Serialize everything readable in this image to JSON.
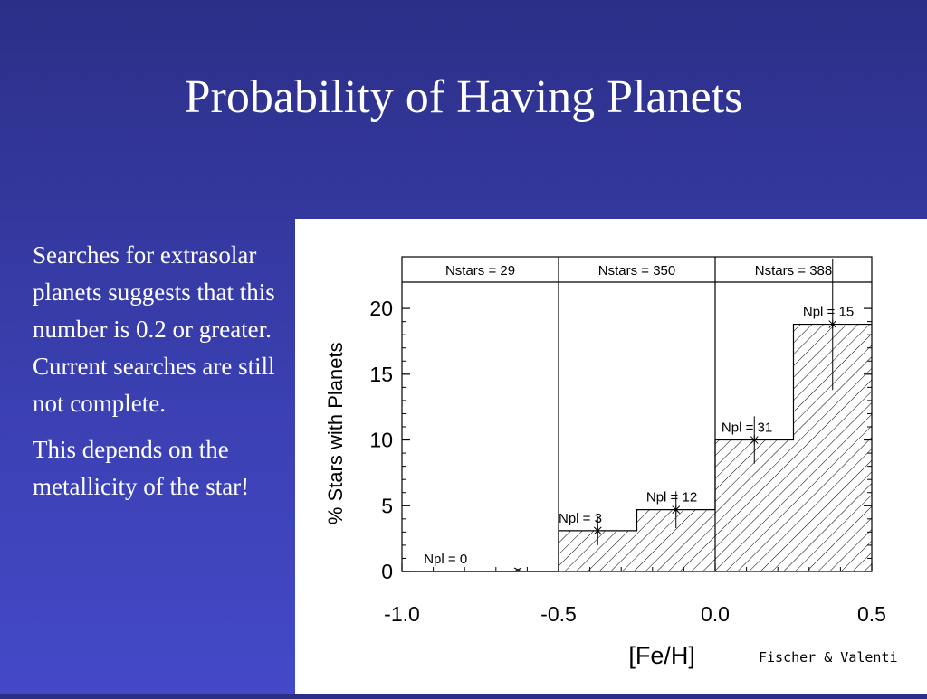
{
  "slide": {
    "title": "Probability of Having Planets",
    "bullets": [
      "Searches for extrasolar planets suggests that this number is 0.2 or greater. Current searches are still not complete.",
      "This depends on the metallicity of the star!"
    ],
    "credit": "Fischer & Valenti"
  },
  "chart_data": {
    "type": "bar",
    "subtype": "histogram",
    "xlabel": "[Fe/H]",
    "ylabel": "% Stars with Planets",
    "xlim": [
      -1.0,
      0.5
    ],
    "ylim": [
      0,
      22
    ],
    "xticks": [
      -1.0,
      -0.5,
      0.0,
      0.5
    ],
    "xtick_labels": [
      "-1.0",
      "-0.5",
      "0.0",
      "0.5"
    ],
    "yticks": [
      0,
      5,
      10,
      15,
      20
    ],
    "ytick_labels": [
      "0",
      "5",
      "10",
      "15",
      "20"
    ],
    "bins": [
      {
        "x0": -1.0,
        "x1": -0.75,
        "value": 0,
        "label": "Npl = 0"
      },
      {
        "x0": -0.75,
        "x1": -0.5,
        "value": 0,
        "label": ""
      },
      {
        "x0": -0.5,
        "x1": -0.25,
        "value": 3.1,
        "label": "Npl = 3",
        "err_x": -0.375,
        "err_low": 2.0,
        "err_high": 4.2
      },
      {
        "x0": -0.25,
        "x1": 0.0,
        "value": 4.7,
        "label": "Npl = 12",
        "err_x": -0.125,
        "err_low": 3.3,
        "err_high": 6.1
      },
      {
        "x0": 0.0,
        "x1": 0.25,
        "value": 10.0,
        "label": "Npl = 31",
        "err_x": 0.125,
        "err_low": 8.2,
        "err_high": 11.8
      },
      {
        "x0": 0.25,
        "x1": 0.5,
        "value": 18.8,
        "label": "Npl = 15",
        "err_x": 0.375,
        "err_low": 13.8,
        "err_high": 23.8
      }
    ],
    "groups": [
      {
        "x0": -1.0,
        "x1": -0.5,
        "label": "Nstars = 29"
      },
      {
        "x0": -0.5,
        "x1": 0.0,
        "label": "Nstars = 350"
      },
      {
        "x0": 0.0,
        "x1": 0.5,
        "label": "Nstars = 388"
      }
    ],
    "bin_label_x": [
      -0.93,
      -0.5,
      -0.22,
      0.02,
      0.28
    ],
    "zero_bin_marker": {
      "x": -0.63,
      "value": 0
    }
  }
}
